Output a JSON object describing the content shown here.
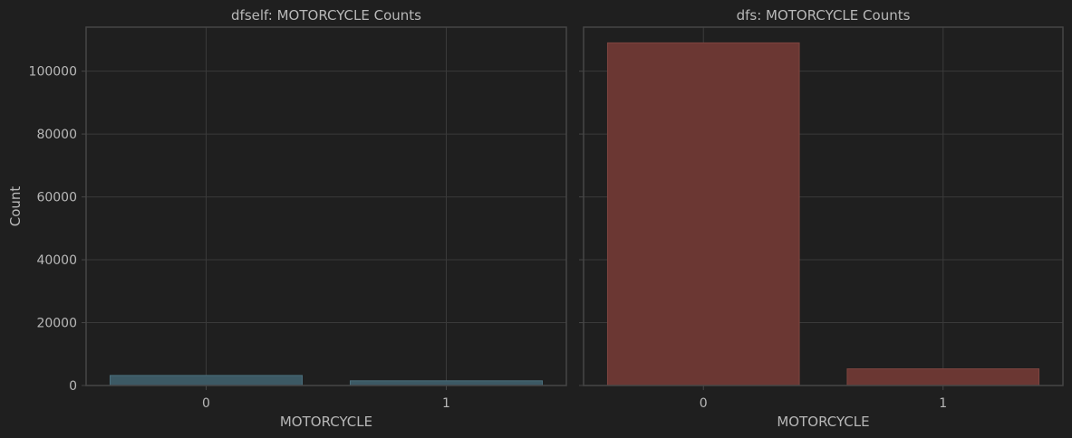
{
  "figure": {
    "background": "#1f1f1f",
    "text_color": "#b8b8b8",
    "grid_color": "#3a3a3a",
    "frame_color": "#464646"
  },
  "chart_data": [
    {
      "type": "bar",
      "title": "dfself: MOTORCYCLE Counts",
      "xlabel": "MOTORCYCLE",
      "ylabel": "Count",
      "categories": [
        "0",
        "1"
      ],
      "values": [
        3200,
        1500
      ],
      "ylim": [
        0,
        114000
      ],
      "yticks": [
        0,
        20000,
        40000,
        60000,
        80000,
        100000
      ],
      "ytick_labels": [
        "0",
        "20000",
        "40000",
        "60000",
        "80000",
        "100000"
      ],
      "grid": true,
      "bar_color": "#3c5964",
      "bar_edge_color": "#4a6e7b"
    },
    {
      "type": "bar",
      "title": "dfs: MOTORCYCLE Counts",
      "xlabel": "MOTORCYCLE",
      "ylabel": "",
      "categories": [
        "0",
        "1"
      ],
      "values": [
        109000,
        5300
      ],
      "ylim": [
        0,
        114000
      ],
      "yticks": [
        0,
        20000,
        40000,
        60000,
        80000,
        100000
      ],
      "ytick_labels": [],
      "grid": true,
      "bar_color": "#6b3733",
      "bar_edge_color": "#7e4540"
    }
  ]
}
